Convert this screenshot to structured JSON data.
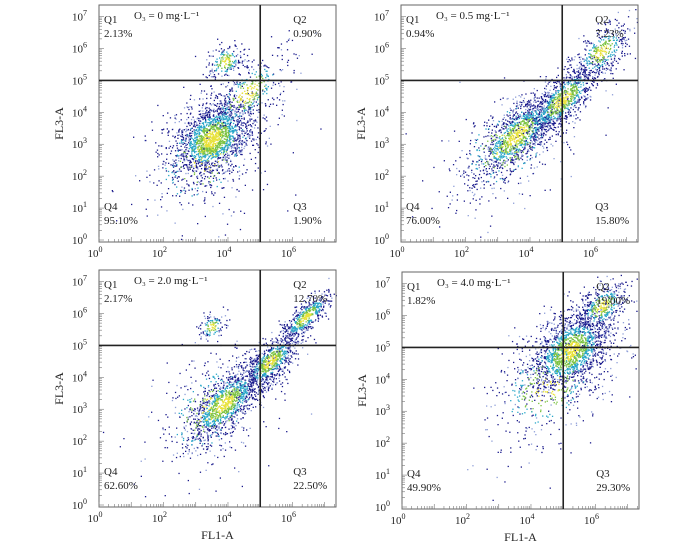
{
  "chart_data": [
    {
      "type": "scatter",
      "title": "O₃ = 0 mg·L⁻¹",
      "xlabel": "",
      "ylabel": "FL3-A",
      "xscale": "log",
      "yscale": "log",
      "xlim": [
        1,
        22000000
      ],
      "ylim": [
        1,
        20000000
      ],
      "x_ticks": [
        "10^0",
        "10^2",
        "10^4",
        "10^6"
      ],
      "y_ticks": [
        "10^0",
        "10^1",
        "10^2",
        "10^3",
        "10^4",
        "10^5",
        "10^6",
        "10^7"
      ],
      "gates": {
        "x": 100000,
        "y": 100000
      },
      "quadrants": [
        {
          "name": "Q1",
          "value": "2.13%"
        },
        {
          "name": "Q2",
          "value": "0.90%"
        },
        {
          "name": "Q3",
          "value": "1.90%"
        },
        {
          "name": "Q4",
          "value": "95.10%"
        }
      ]
    },
    {
      "type": "scatter",
      "title": "O₃ = 0.5 mg·L⁻¹",
      "xlabel": "",
      "ylabel": "FL3-A",
      "xscale": "log",
      "yscale": "log",
      "xlim": [
        1,
        22000000
      ],
      "ylim": [
        1,
        20000000
      ],
      "x_ticks": [
        "10^0",
        "10^2",
        "10^4",
        "10^6"
      ],
      "y_ticks": [
        "10^0",
        "10^1",
        "10^2",
        "10^3",
        "10^4",
        "10^5",
        "10^6",
        "10^7"
      ],
      "gates": {
        "x": 100000,
        "y": 100000
      },
      "quadrants": [
        {
          "name": "Q1",
          "value": "0.94%"
        },
        {
          "name": "Q2",
          "value": "7.23%"
        },
        {
          "name": "Q3",
          "value": "15.80%"
        },
        {
          "name": "Q4",
          "value": "76.00%"
        }
      ]
    },
    {
      "type": "scatter",
      "title": "O₃ = 2.0 mg·L⁻¹",
      "xlabel": "FL1-A",
      "ylabel": "FL3-A",
      "xscale": "log",
      "yscale": "log",
      "xlim": [
        1,
        22000000
      ],
      "ylim": [
        1,
        20000000
      ],
      "x_ticks": [
        "10^0",
        "10^2",
        "10^4",
        "10^6"
      ],
      "y_ticks": [
        "10^0",
        "10^1",
        "10^2",
        "10^3",
        "10^4",
        "10^5",
        "10^6",
        "10^7"
      ],
      "gates": {
        "x": 100000,
        "y": 100000
      },
      "quadrants": [
        {
          "name": "Q1",
          "value": "2.17%"
        },
        {
          "name": "Q2",
          "value": "12.70%"
        },
        {
          "name": "Q3",
          "value": "22.50%"
        },
        {
          "name": "Q4",
          "value": "62.60%"
        }
      ]
    },
    {
      "type": "scatter",
      "title": "O₃ = 4.0 mg·L⁻¹",
      "xlabel": "FL1-A",
      "ylabel": "FL3-A",
      "xscale": "log",
      "yscale": "log",
      "xlim": [
        1,
        22000000
      ],
      "ylim": [
        1,
        20000000
      ],
      "x_ticks": [
        "10^0",
        "10^2",
        "10^4",
        "10^6"
      ],
      "y_ticks": [
        "10^0",
        "10^1",
        "10^2",
        "10^3",
        "10^4",
        "10^5",
        "10^6",
        "10^7"
      ],
      "gates": {
        "x": 100000,
        "y": 100000
      },
      "quadrants": [
        {
          "name": "Q1",
          "value": "1.82%"
        },
        {
          "name": "Q2",
          "value": "19.00%"
        },
        {
          "name": "Q3",
          "value": "29.30%"
        },
        {
          "name": "Q4",
          "value": "49.90%"
        }
      ]
    }
  ],
  "colors": {
    "low_density": "#1a1a8c",
    "mid_density": "#2aa7c9",
    "high_density": "#7cc242",
    "peak_density": "#e8e23a",
    "gate_line": "#222222"
  }
}
